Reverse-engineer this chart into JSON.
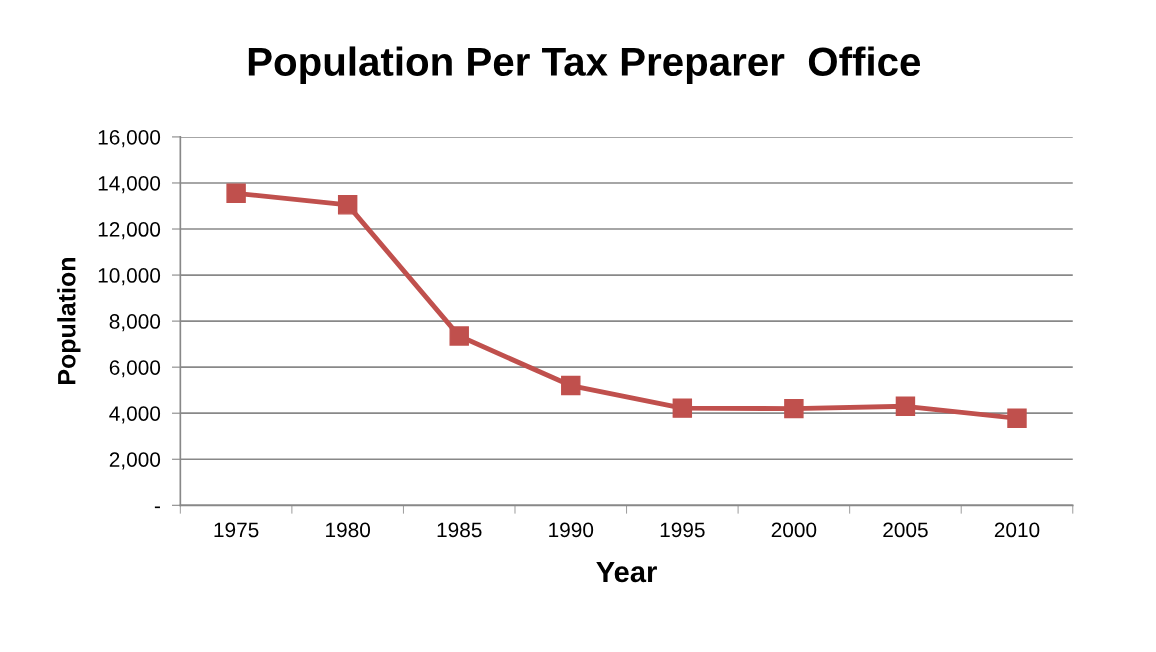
{
  "chart_data": {
    "type": "line",
    "title": "Population Per Tax Preparer  Office",
    "xlabel": "Year",
    "ylabel": "Population",
    "categories": [
      "1975",
      "1980",
      "1985",
      "1990",
      "1995",
      "2000",
      "2005",
      "2010"
    ],
    "series": [
      {
        "color": "#c0504d",
        "values": [
          13550,
          13050,
          7350,
          5200,
          4220,
          4200,
          4300,
          3780
        ]
      }
    ],
    "ylim": [
      0,
      16000
    ],
    "yticks": [
      {
        "value": 0,
        "label": "-"
      },
      {
        "value": 2000,
        "label": "2,000"
      },
      {
        "value": 4000,
        "label": "4,000"
      },
      {
        "value": 6000,
        "label": "6,000"
      },
      {
        "value": 8000,
        "label": "8,000"
      },
      {
        "value": 10000,
        "label": "10,000"
      },
      {
        "value": 12000,
        "label": "12,000"
      },
      {
        "value": 14000,
        "label": "14,000"
      },
      {
        "value": 16000,
        "label": "16,000"
      }
    ],
    "grid": "y",
    "marker": "square",
    "line_style": "solid"
  }
}
